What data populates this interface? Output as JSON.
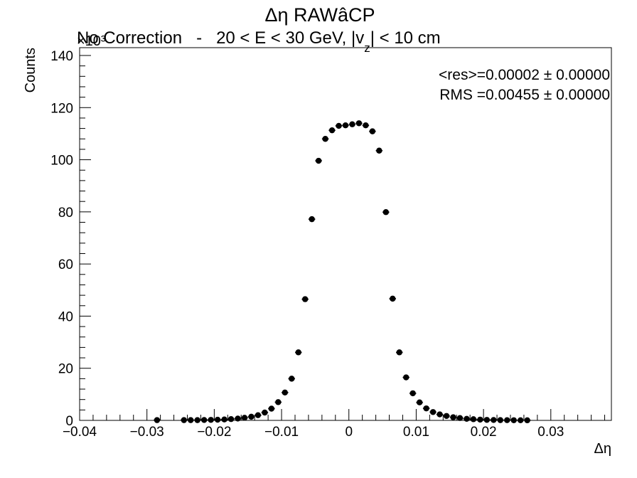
{
  "chart_data": {
    "type": "scatter",
    "title": "Δη RAWâCP",
    "subtitle_parts": [
      "No Correction",
      "   -   ",
      "20 < E < 30 GeV, |v",
      "z",
      "| < 10 cm"
    ],
    "xlabel": "Δη",
    "ylabel": "Counts",
    "y_multiplier": "×10³",
    "xlim": [
      -0.04,
      0.039
    ],
    "ylim": [
      0,
      143
    ],
    "x_ticks": [
      -0.04,
      -0.03,
      -0.02,
      -0.01,
      0,
      0.01,
      0.02,
      0.03
    ],
    "x_tick_labels": [
      "−0.04",
      "−0.03",
      "−0.02",
      "−0.01",
      "0",
      "0.01",
      "0.02",
      "0.03"
    ],
    "y_ticks": [
      0,
      20,
      40,
      60,
      80,
      100,
      120,
      140
    ],
    "y_tick_labels": [
      "0",
      "20",
      "40",
      "60",
      "80",
      "100",
      "120",
      "140"
    ],
    "stats": [
      "<res>=0.00002 ± 0.00000",
      "RMS =0.00455 ± 0.00000"
    ],
    "series": [
      {
        "marker_color": "#000000",
        "x": [
          -0.0285,
          -0.0245,
          -0.0235,
          -0.0225,
          -0.0215,
          -0.0205,
          -0.0195,
          -0.0185,
          -0.0175,
          -0.0165,
          -0.0155,
          -0.0145,
          -0.0135,
          -0.0125,
          -0.0115,
          -0.0105,
          -0.0095,
          -0.0085,
          -0.0075,
          -0.0065,
          -0.0055,
          -0.0045,
          -0.0035,
          -0.0025,
          -0.0015,
          -0.0005,
          0.0005,
          0.0015,
          0.0025,
          0.0035,
          0.0045,
          0.0055,
          0.0065,
          0.0075,
          0.0085,
          0.0095,
          0.0105,
          0.0115,
          0.0125,
          0.0135,
          0.0145,
          0.0155,
          0.0165,
          0.0175,
          0.0185,
          0.0195,
          0.0205,
          0.0215,
          0.0225,
          0.0235,
          0.0245,
          0.0255,
          0.0265
        ],
        "y": [
          0.1,
          0.1,
          0.1,
          0.1,
          0.15,
          0.2,
          0.25,
          0.35,
          0.5,
          0.7,
          1.0,
          1.4,
          2.0,
          3.0,
          4.5,
          7.0,
          10.7,
          16.0,
          26.1,
          46.5,
          77.2,
          99.6,
          108.0,
          111.3,
          113.0,
          113.2,
          113.6,
          114.0,
          113.2,
          110.9,
          103.5,
          79.9,
          46.7,
          26.1,
          16.5,
          10.4,
          6.9,
          4.6,
          3.2,
          2.3,
          1.7,
          1.2,
          0.9,
          0.6,
          0.45,
          0.3,
          0.2,
          0.15,
          0.1,
          0.08,
          0.06,
          0.05,
          0.04
        ]
      }
    ]
  }
}
